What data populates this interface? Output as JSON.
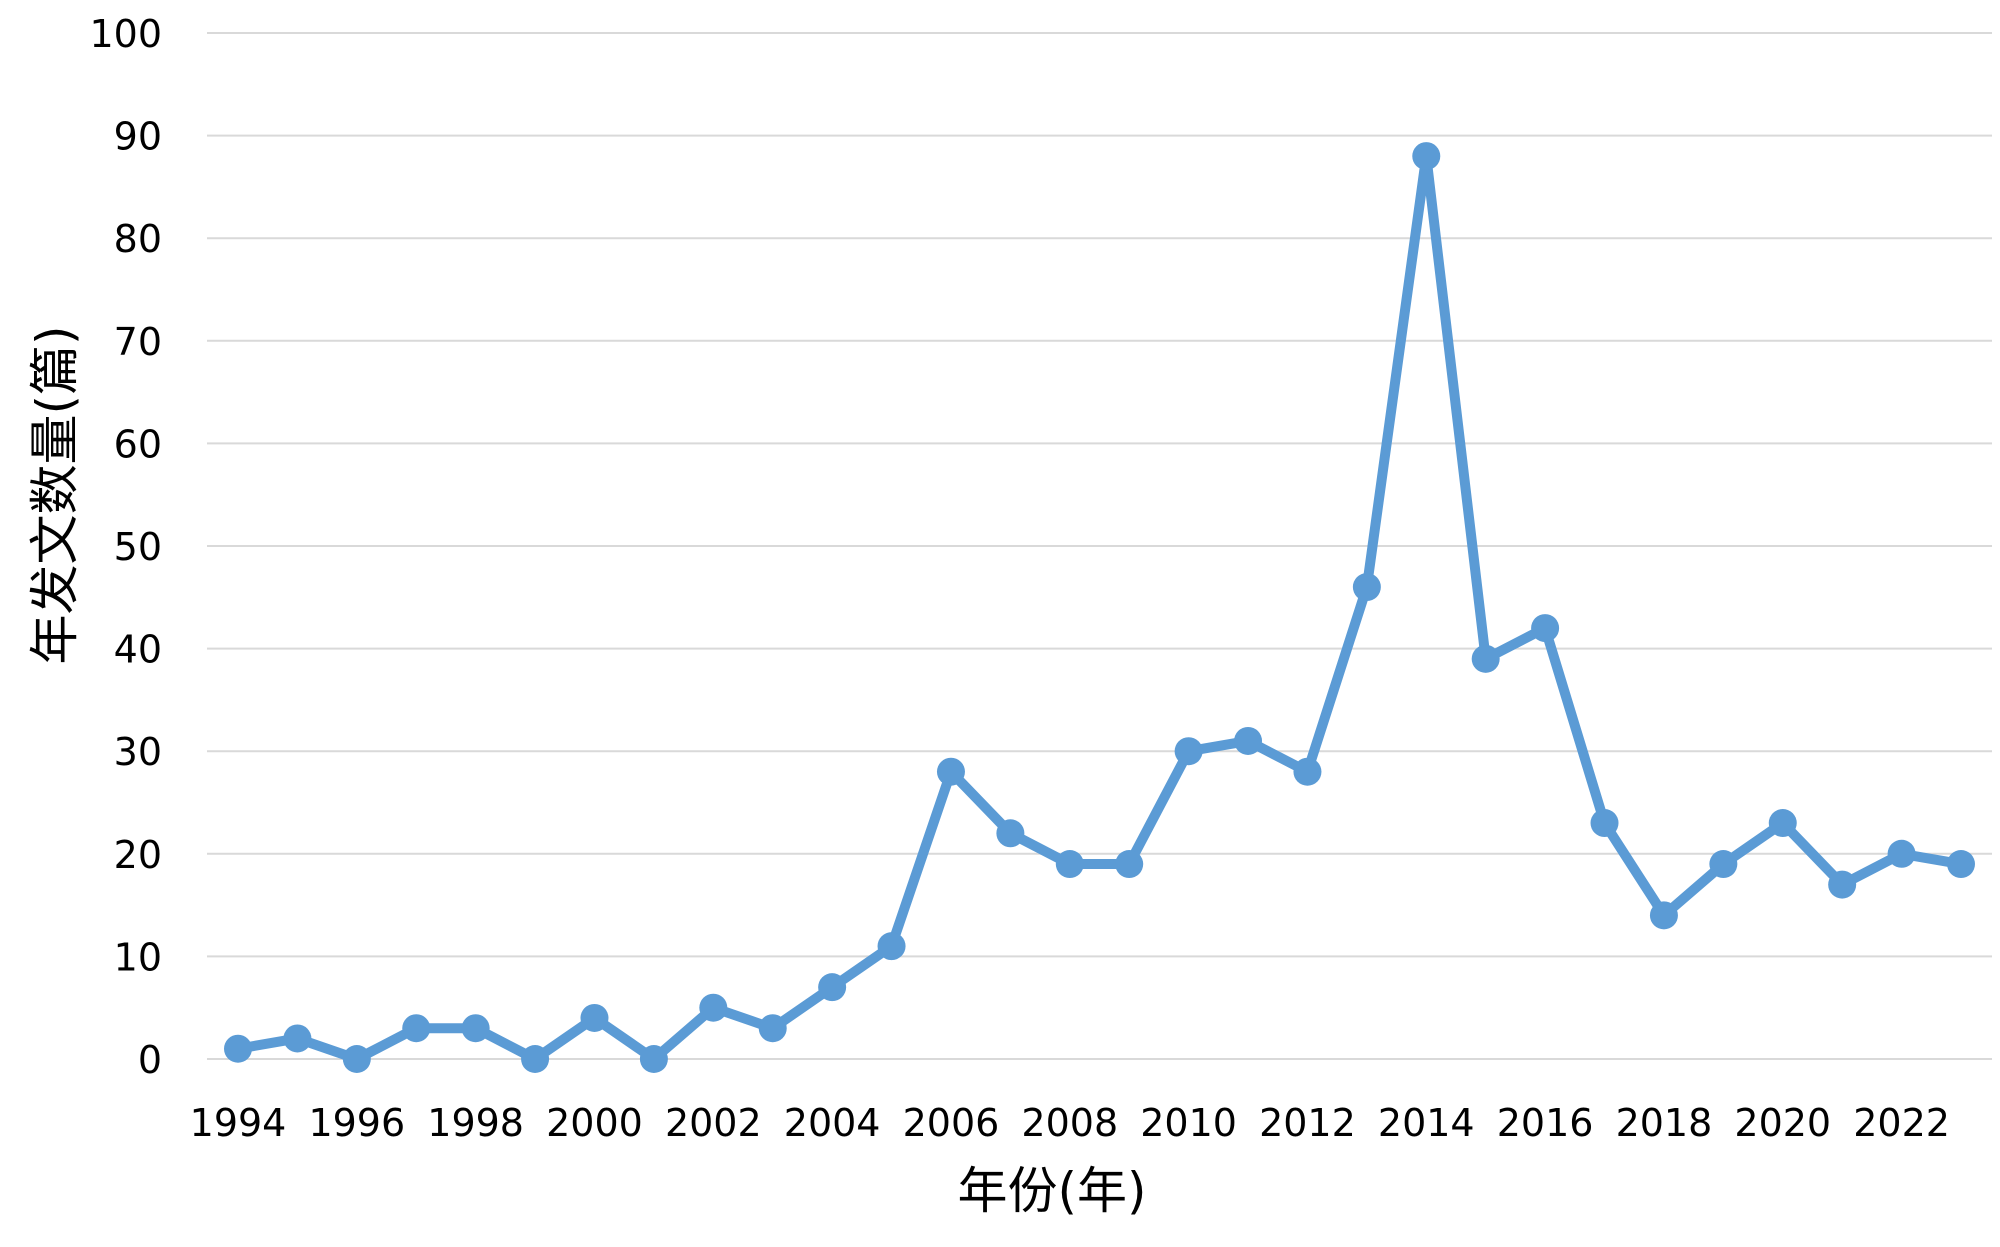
{
  "chart_data": {
    "type": "line",
    "xlabel": "年份(年)",
    "ylabel": "年发文数量(篇)",
    "ylim": [
      0,
      100
    ],
    "yticks": [
      0,
      10,
      20,
      30,
      40,
      50,
      60,
      70,
      80,
      90,
      100
    ],
    "x_tick_labels": [
      "1994",
      "1996",
      "1998",
      "2000",
      "2002",
      "2004",
      "2006",
      "2008",
      "2010",
      "2012",
      "2014",
      "2016",
      "2018",
      "2020",
      "2022"
    ],
    "grid": true,
    "legend": "none",
    "series_color": "#5b9bd5",
    "x": [
      1994,
      1995,
      1996,
      1997,
      1998,
      1999,
      2000,
      2001,
      2002,
      2003,
      2004,
      2005,
      2006,
      2007,
      2008,
      2009,
      2010,
      2011,
      2012,
      2013,
      2014,
      2015,
      2016,
      2017,
      2018,
      2019,
      2020,
      2021,
      2022,
      2023
    ],
    "series": [
      {
        "values": [
          1,
          2,
          0,
          3,
          3,
          0,
          4,
          0,
          5,
          3,
          7,
          11,
          28,
          22,
          19,
          19,
          30,
          31,
          28,
          46,
          88,
          39,
          42,
          23,
          14,
          19,
          23,
          17,
          20,
          19
        ]
      }
    ]
  }
}
